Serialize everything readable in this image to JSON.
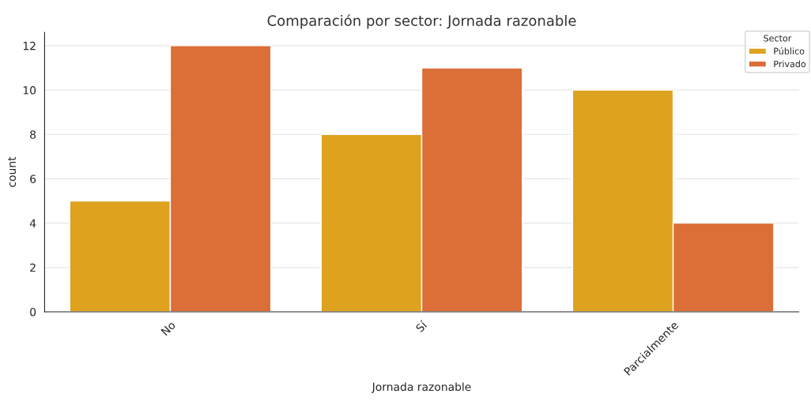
{
  "chart_data": {
    "type": "bar",
    "title": "Comparación por sector: Jornada razonable",
    "xlabel": "Jornada razonable",
    "ylabel": "count",
    "legend_title": "Sector",
    "categories": [
      "No",
      "Sí",
      "Parcialmente"
    ],
    "series": [
      {
        "name": "Público",
        "color": "#dea21f",
        "values": [
          5,
          8,
          10
        ]
      },
      {
        "name": "Privado",
        "color": "#dc6e37",
        "values": [
          12,
          11,
          4
        ]
      }
    ],
    "ylim": [
      0,
      12.6
    ],
    "yticks": [
      0,
      2,
      4,
      6,
      8,
      10,
      12
    ],
    "grid": "y",
    "legend": "top right"
  }
}
